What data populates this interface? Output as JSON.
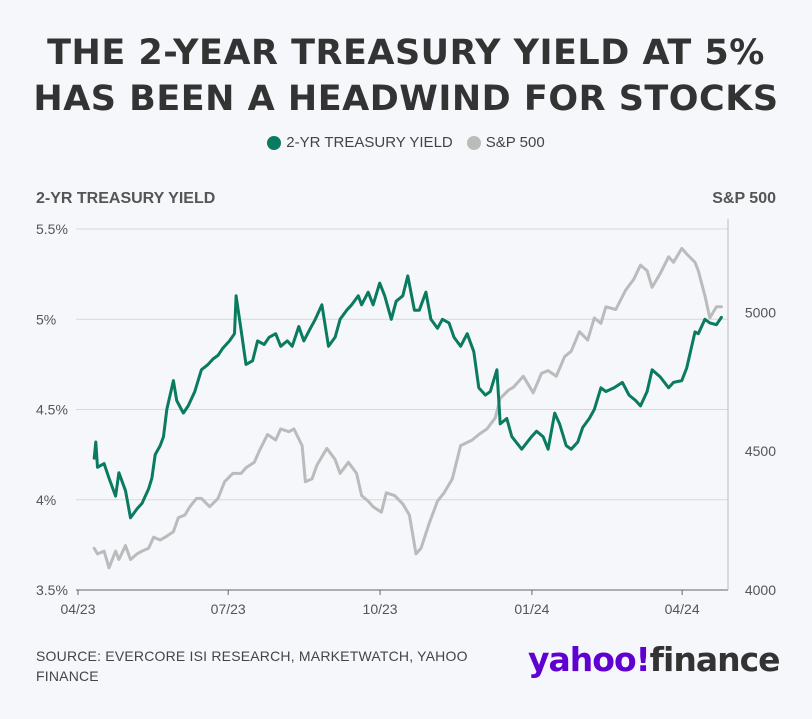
{
  "title_line1": "THE 2-YEAR TREASURY YIELD AT 5%",
  "title_line2": "HAS BEEN A HEADWIND FOR STOCKS",
  "legend": [
    {
      "label": "2-YR TREASURY YIELD",
      "color": "#0a7a60"
    },
    {
      "label": "S&P 500",
      "color": "#bbbbbb"
    }
  ],
  "left_axis_title": "2-YR TREASURY YIELD",
  "right_axis_title": "S&P 500",
  "source": "SOURCE: EVERCORE ISI RESEARCH, MARKETWATCH, YAHOO FINANCE",
  "logo": {
    "brand": "yahoo!",
    "product": "finance"
  },
  "chart_data": {
    "type": "line",
    "x_ticks": [
      "04/23",
      "07/23",
      "10/23",
      "01/24",
      "04/24"
    ],
    "y_left": {
      "ticks": [
        "3.5%",
        "4%",
        "4.5%",
        "5%",
        "5.5%"
      ],
      "values": [
        3.5,
        4.0,
        4.5,
        5.0,
        5.5
      ],
      "range": [
        3.5,
        5.5
      ]
    },
    "y_right": {
      "ticks": [
        "4000",
        "4500",
        "5000"
      ],
      "values": [
        4000,
        4500,
        5000
      ],
      "range": [
        4000,
        5300
      ]
    },
    "x_range": [
      "2023-04-01",
      "2024-04-30"
    ],
    "series": [
      {
        "name": "2-YR TREASURY YIELD",
        "axis": "left",
        "color": "#0a7a60",
        "x": [
          "2023-04-12",
          "2023-04-13",
          "2023-04-14",
          "2023-04-18",
          "2023-04-21",
          "2023-04-25",
          "2023-04-27",
          "2023-05-01",
          "2023-05-04",
          "2023-05-08",
          "2023-05-11",
          "2023-05-15",
          "2023-05-17",
          "2023-05-19",
          "2023-05-22",
          "2023-05-24",
          "2023-05-26",
          "2023-05-30",
          "2023-06-01",
          "2023-06-05",
          "2023-06-08",
          "2023-06-12",
          "2023-06-16",
          "2023-06-20",
          "2023-06-23",
          "2023-06-26",
          "2023-06-29",
          "2023-07-03",
          "2023-07-06",
          "2023-07-07",
          "2023-07-10",
          "2023-07-13",
          "2023-07-17",
          "2023-07-20",
          "2023-07-24",
          "2023-07-27",
          "2023-07-31",
          "2023-08-03",
          "2023-08-07",
          "2023-08-10",
          "2023-08-14",
          "2023-08-17",
          "2023-08-21",
          "2023-08-24",
          "2023-08-28",
          "2023-09-01",
          "2023-09-05",
          "2023-09-08",
          "2023-09-12",
          "2023-09-15",
          "2023-09-19",
          "2023-09-21",
          "2023-09-25",
          "2023-09-28",
          "2023-10-02",
          "2023-10-05",
          "2023-10-09",
          "2023-10-12",
          "2023-10-16",
          "2023-10-19",
          "2023-10-23",
          "2023-10-26",
          "2023-10-30",
          "2023-11-02",
          "2023-11-06",
          "2023-11-09",
          "2023-11-13",
          "2023-11-16",
          "2023-11-20",
          "2023-11-24",
          "2023-11-28",
          "2023-12-01",
          "2023-12-05",
          "2023-12-08",
          "2023-12-12",
          "2023-12-14",
          "2023-12-18",
          "2023-12-21",
          "2023-12-27",
          "2024-01-02",
          "2024-01-05",
          "2024-01-09",
          "2024-01-12",
          "2024-01-16",
          "2024-01-19",
          "2024-01-23",
          "2024-01-26",
          "2024-01-30",
          "2024-02-02",
          "2024-02-06",
          "2024-02-09",
          "2024-02-13",
          "2024-02-16",
          "2024-02-21",
          "2024-02-26",
          "2024-03-01",
          "2024-03-05",
          "2024-03-08",
          "2024-03-12",
          "2024-03-15",
          "2024-03-20",
          "2024-03-25",
          "2024-03-28",
          "2024-04-02",
          "2024-04-05",
          "2024-04-10",
          "2024-04-12",
          "2024-04-16",
          "2024-04-19",
          "2024-04-23",
          "2024-04-26"
        ],
        "values": [
          4.23,
          4.32,
          4.18,
          4.2,
          4.12,
          4.02,
          4.15,
          4.05,
          3.9,
          3.95,
          3.98,
          4.06,
          4.12,
          4.25,
          4.3,
          4.35,
          4.5,
          4.66,
          4.55,
          4.48,
          4.52,
          4.6,
          4.72,
          4.75,
          4.78,
          4.8,
          4.84,
          4.88,
          4.92,
          5.13,
          4.94,
          4.75,
          4.77,
          4.88,
          4.86,
          4.9,
          4.92,
          4.85,
          4.88,
          4.85,
          4.96,
          4.88,
          4.95,
          5.0,
          5.08,
          4.85,
          4.9,
          5.0,
          5.05,
          5.08,
          5.13,
          5.08,
          5.15,
          5.08,
          5.2,
          5.13,
          5.0,
          5.1,
          5.13,
          5.24,
          5.05,
          5.05,
          5.15,
          5.0,
          4.95,
          5.0,
          4.98,
          4.9,
          4.85,
          4.92,
          4.82,
          4.62,
          4.58,
          4.6,
          4.72,
          4.42,
          4.45,
          4.35,
          4.28,
          4.35,
          4.38,
          4.35,
          4.28,
          4.48,
          4.42,
          4.3,
          4.28,
          4.32,
          4.4,
          4.45,
          4.5,
          4.62,
          4.6,
          4.62,
          4.65,
          4.58,
          4.55,
          4.52,
          4.6,
          4.72,
          4.68,
          4.62,
          4.65,
          4.66,
          4.73,
          4.93,
          4.92,
          5.0,
          4.98,
          4.97,
          5.01
        ]
      },
      {
        "name": "S&P 500",
        "axis": "right",
        "color": "#bbbbbb",
        "x": [
          "2023-04-12",
          "2023-04-14",
          "2023-04-18",
          "2023-04-21",
          "2023-04-25",
          "2023-04-27",
          "2023-05-01",
          "2023-05-04",
          "2023-05-08",
          "2023-05-11",
          "2023-05-15",
          "2023-05-18",
          "2023-05-22",
          "2023-05-25",
          "2023-05-30",
          "2023-06-02",
          "2023-06-06",
          "2023-06-09",
          "2023-06-13",
          "2023-06-16",
          "2023-06-21",
          "2023-06-26",
          "2023-06-30",
          "2023-07-05",
          "2023-07-10",
          "2023-07-13",
          "2023-07-18",
          "2023-07-21",
          "2023-07-26",
          "2023-07-31",
          "2023-08-03",
          "2023-08-08",
          "2023-08-11",
          "2023-08-16",
          "2023-08-18",
          "2023-08-22",
          "2023-08-25",
          "2023-08-31",
          "2023-09-05",
          "2023-09-08",
          "2023-09-13",
          "2023-09-18",
          "2023-09-21",
          "2023-09-25",
          "2023-09-28",
          "2023-10-03",
          "2023-10-06",
          "2023-10-11",
          "2023-10-16",
          "2023-10-20",
          "2023-10-24",
          "2023-10-27",
          "2023-11-01",
          "2023-11-06",
          "2023-11-10",
          "2023-11-15",
          "2023-11-20",
          "2023-11-27",
          "2023-12-01",
          "2023-12-06",
          "2023-12-11",
          "2023-12-14",
          "2023-12-19",
          "2023-12-22",
          "2023-12-28",
          "2024-01-03",
          "2024-01-08",
          "2024-01-12",
          "2024-01-17",
          "2024-01-22",
          "2024-01-26",
          "2024-01-31",
          "2024-02-05",
          "2024-02-09",
          "2024-02-13",
          "2024-02-16",
          "2024-02-22",
          "2024-02-28",
          "2024-03-04",
          "2024-03-08",
          "2024-03-12",
          "2024-03-15",
          "2024-03-20",
          "2024-03-25",
          "2024-03-28",
          "2024-04-02",
          "2024-04-05",
          "2024-04-10",
          "2024-04-12",
          "2024-04-16",
          "2024-04-19",
          "2024-04-23",
          "2024-04-26"
        ],
        "values": [
          4150,
          4130,
          4140,
          4080,
          4140,
          4110,
          4160,
          4110,
          4130,
          4140,
          4150,
          4190,
          4180,
          4190,
          4210,
          4260,
          4270,
          4300,
          4330,
          4330,
          4300,
          4330,
          4390,
          4420,
          4420,
          4440,
          4460,
          4500,
          4560,
          4540,
          4580,
          4570,
          4580,
          4520,
          4390,
          4400,
          4450,
          4510,
          4470,
          4420,
          4460,
          4420,
          4340,
          4320,
          4300,
          4280,
          4350,
          4340,
          4310,
          4270,
          4130,
          4150,
          4240,
          4320,
          4350,
          4400,
          4520,
          4540,
          4560,
          4580,
          4620,
          4690,
          4720,
          4730,
          4770,
          4710,
          4780,
          4790,
          4770,
          4840,
          4860,
          4930,
          4900,
          4980,
          4960,
          5020,
          5010,
          5080,
          5120,
          5170,
          5150,
          5090,
          5140,
          5200,
          5180,
          5230,
          5210,
          5180,
          5150,
          5060,
          4980,
          5020,
          5020
        ]
      }
    ]
  }
}
